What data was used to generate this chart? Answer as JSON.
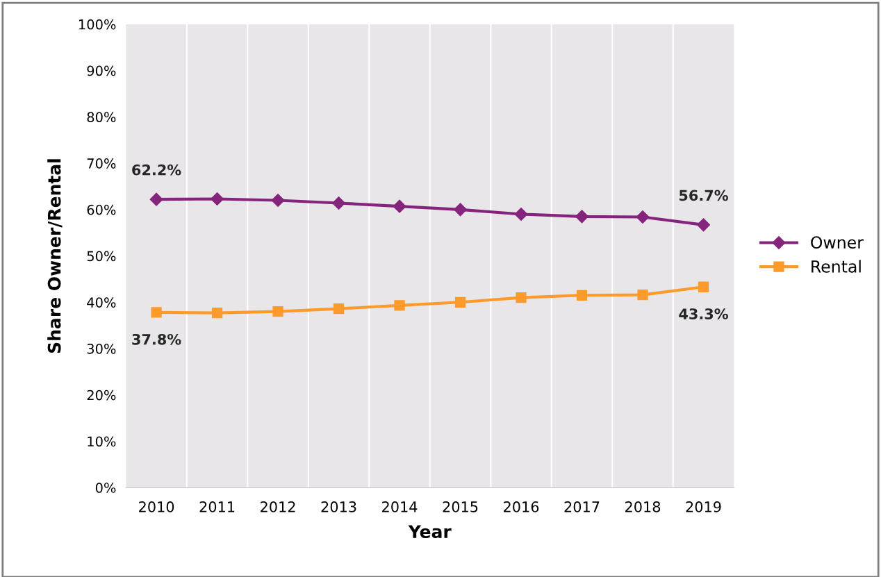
{
  "chart_data": {
    "type": "line",
    "xlabel": "Year",
    "ylabel": "Share Owner/Rental",
    "categories": [
      "2010",
      "2011",
      "2012",
      "2013",
      "2014",
      "2015",
      "2016",
      "2017",
      "2018",
      "2019"
    ],
    "series": [
      {
        "name": "Owner",
        "color": "#85247c",
        "marker": "diamond",
        "values": [
          62.2,
          62.3,
          62.0,
          61.4,
          60.7,
          60.0,
          59.0,
          58.5,
          58.4,
          56.7
        ],
        "value_labels": [
          "62.2%",
          null,
          null,
          null,
          null,
          null,
          null,
          null,
          null,
          "56.7%"
        ]
      },
      {
        "name": "Rental",
        "color": "#fd9a2c",
        "marker": "square",
        "values": [
          37.8,
          37.7,
          38.0,
          38.6,
          39.3,
          40.0,
          41.0,
          41.5,
          41.6,
          43.3
        ],
        "value_labels": [
          "37.8%",
          null,
          null,
          null,
          null,
          null,
          null,
          null,
          null,
          "43.3%"
        ]
      }
    ],
    "ylim": [
      0,
      100
    ],
    "yticks": [
      {
        "value": 0,
        "label": "0%"
      },
      {
        "value": 10,
        "label": "10%"
      },
      {
        "value": 20,
        "label": "20%"
      },
      {
        "value": 30,
        "label": "30%"
      },
      {
        "value": 40,
        "label": "40%"
      },
      {
        "value": 50,
        "label": "50%"
      },
      {
        "value": 60,
        "label": "60%"
      },
      {
        "value": 70,
        "label": "70%"
      },
      {
        "value": 80,
        "label": "80%"
      },
      {
        "value": 90,
        "label": "90%"
      },
      {
        "value": 100,
        "label": "100%"
      }
    ],
    "grid": "x",
    "legend": "right",
    "line_style": "solid"
  }
}
